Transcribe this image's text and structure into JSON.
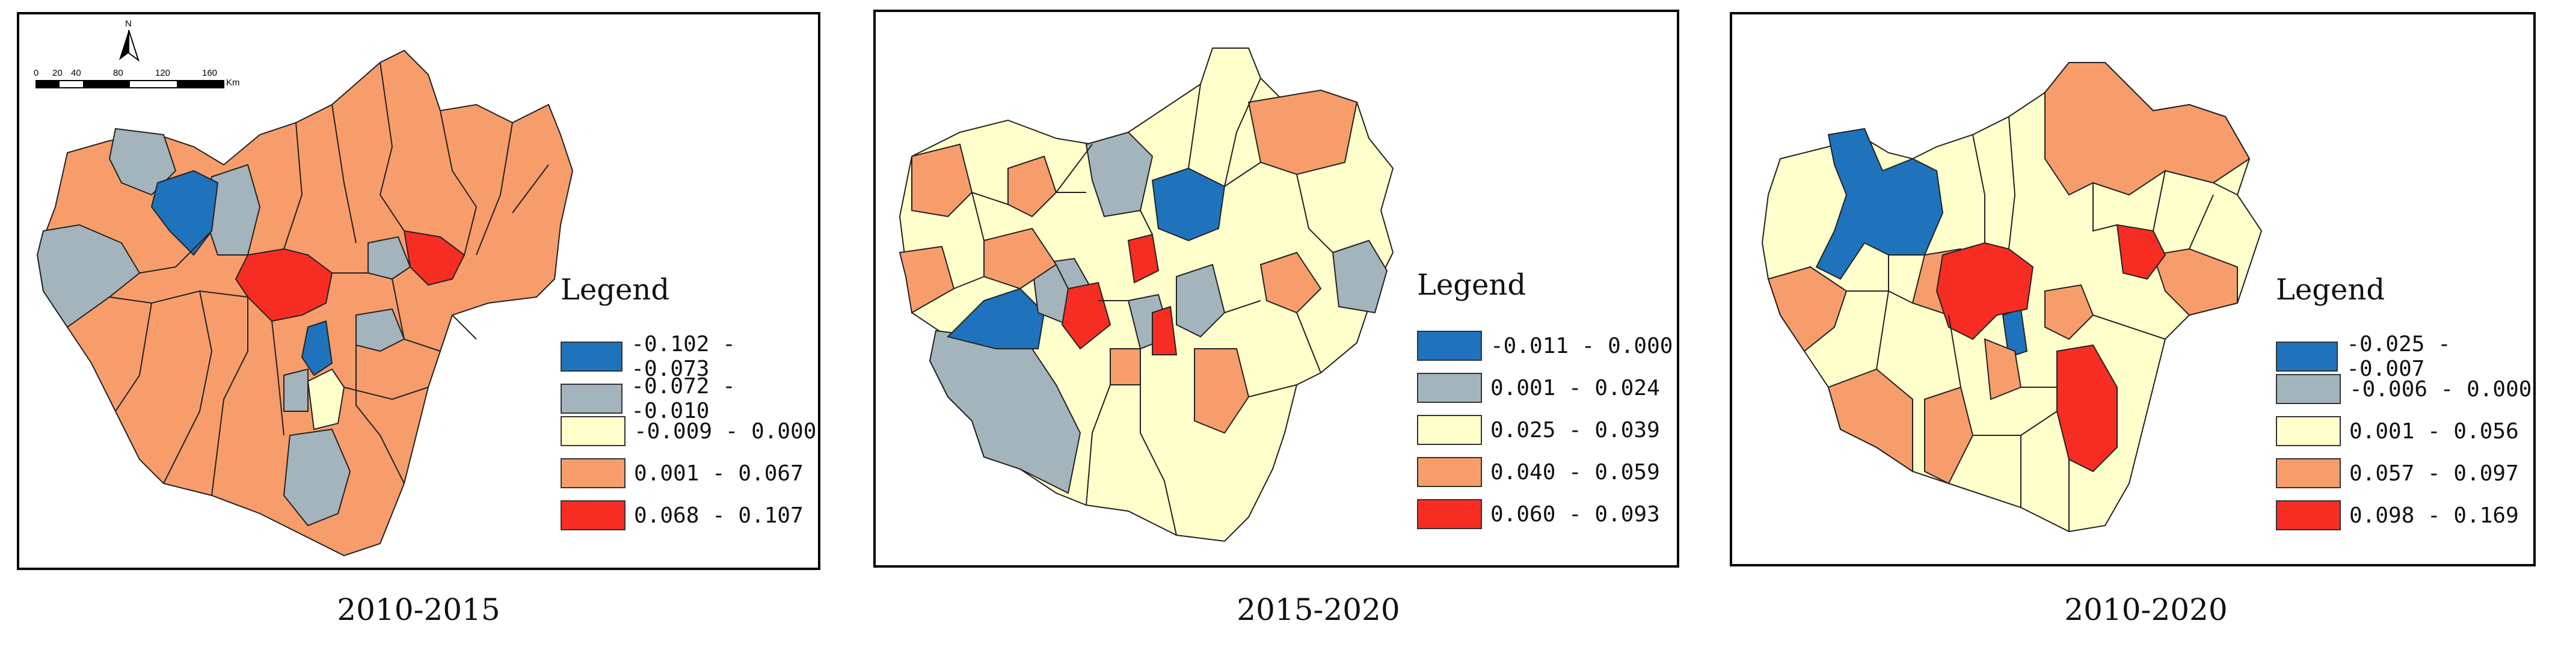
{
  "colors": {
    "c1": "#1f73bd",
    "c2": "#a3b4bd",
    "c3": "#ffffcc",
    "c4": "#f79d6b",
    "c5": "#f72d24"
  },
  "north_arrow": {
    "label": "N"
  },
  "scale_bar": {
    "ticks": [
      "0",
      "20",
      "40",
      "80",
      "120",
      "160"
    ],
    "unit": "Km"
  },
  "panels": [
    {
      "caption": "2010-2015",
      "legend_title": "Legend",
      "classes": [
        {
          "label": "-0.102 - -0.073",
          "color": "#1f73bd"
        },
        {
          "label": "-0.072 - -0.010",
          "color": "#a3b4bd"
        },
        {
          "label": "-0.009 - 0.000",
          "color": "#ffffcc"
        },
        {
          "label": "0.001 - 0.067",
          "color": "#f79d6b"
        },
        {
          "label": "0.068 - 0.107",
          "color": "#f72d24"
        }
      ]
    },
    {
      "caption": "2015-2020",
      "legend_title": "Legend",
      "classes": [
        {
          "label": "-0.011 - 0.000",
          "color": "#1f73bd"
        },
        {
          "label": "0.001 - 0.024",
          "color": "#a3b4bd"
        },
        {
          "label": "0.025 - 0.039",
          "color": "#ffffcc"
        },
        {
          "label": "0.040 - 0.059",
          "color": "#f79d6b"
        },
        {
          "label": "0.060 - 0.093",
          "color": "#f72d24"
        }
      ]
    },
    {
      "caption": "2010-2020",
      "legend_title": "Legend",
      "classes": [
        {
          "label": "-0.025 - -0.007",
          "color": "#1f73bd"
        },
        {
          "label": "-0.006 - 0.000",
          "color": "#a3b4bd"
        },
        {
          "label": "0.001 - 0.056",
          "color": "#ffffcc"
        },
        {
          "label": "0.057 - 0.097",
          "color": "#f79d6b"
        },
        {
          "label": "0.098 - 0.169",
          "color": "#f72d24"
        }
      ]
    }
  ]
}
